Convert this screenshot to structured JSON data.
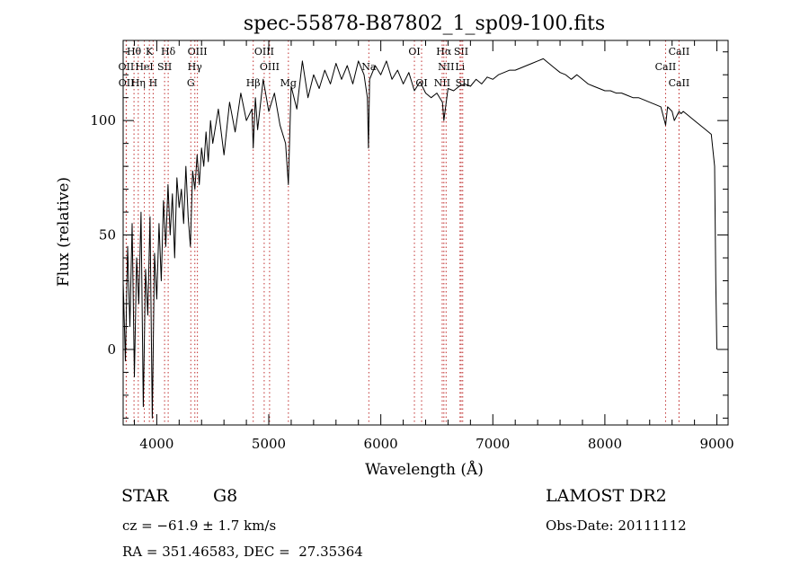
{
  "chart_data": {
    "type": "line",
    "title": "spec-55878-B87802_1_sp09-100.fits",
    "xlabel": "Wavelength (Å)",
    "ylabel": "Flux (relative)",
    "xlim": [
      3700,
      9100
    ],
    "ylim": [
      -33,
      135
    ],
    "x_ticks": [
      4000,
      5000,
      6000,
      7000,
      8000,
      9000
    ],
    "y_ticks": [
      0,
      50,
      100
    ],
    "grid": false,
    "series": [
      {
        "x": [
          3700,
          3720,
          3740,
          3760,
          3780,
          3800,
          3820,
          3840,
          3860,
          3880,
          3900,
          3920,
          3940,
          3960,
          3980,
          4000,
          4020,
          4040,
          4060,
          4080,
          4100,
          4120,
          4140,
          4160,
          4180,
          4200,
          4220,
          4240,
          4260,
          4280,
          4300,
          4320,
          4340,
          4360,
          4380,
          4400,
          4420,
          4440,
          4460,
          4480,
          4500,
          4550,
          4600,
          4650,
          4700,
          4750,
          4800,
          4850,
          4861,
          4880,
          4900,
          4950,
          5000,
          5050,
          5100,
          5150,
          5175,
          5200,
          5250,
          5300,
          5350,
          5400,
          5450,
          5500,
          5550,
          5600,
          5650,
          5700,
          5750,
          5800,
          5850,
          5880,
          5890,
          5900,
          5950,
          6000,
          6050,
          6100,
          6150,
          6200,
          6250,
          6300,
          6350,
          6400,
          6450,
          6500,
          6550,
          6563,
          6600,
          6650,
          6700,
          6750,
          6800,
          6850,
          6900,
          6950,
          7000,
          7050,
          7100,
          7150,
          7200,
          7250,
          7300,
          7350,
          7400,
          7450,
          7500,
          7550,
          7600,
          7650,
          7700,
          7750,
          7800,
          7850,
          7900,
          7950,
          8000,
          8050,
          8100,
          8150,
          8200,
          8250,
          8300,
          8350,
          8400,
          8450,
          8500,
          8542,
          8560,
          8600,
          8620,
          8662,
          8680,
          8700,
          8750,
          8800,
          8850,
          8900,
          8950,
          8980,
          8990,
          9000
        ],
        "y": [
          30,
          -5,
          45,
          10,
          55,
          -12,
          40,
          20,
          60,
          -25,
          35,
          15,
          58,
          -30,
          42,
          22,
          55,
          30,
          65,
          45,
          72,
          50,
          68,
          40,
          75,
          62,
          70,
          55,
          80,
          58,
          45,
          78,
          70,
          85,
          72,
          88,
          80,
          95,
          82,
          100,
          90,
          105,
          85,
          108,
          95,
          112,
          100,
          105,
          88,
          110,
          96,
          118,
          104,
          112,
          98,
          90,
          72,
          115,
          105,
          126,
          110,
          120,
          114,
          122,
          116,
          125,
          118,
          124,
          116,
          126,
          120,
          110,
          88,
          118,
          124,
          120,
          126,
          118,
          122,
          116,
          121,
          113,
          117,
          112,
          110,
          112,
          108,
          100,
          114,
          113,
          115,
          116,
          115,
          118,
          116,
          119,
          118,
          120,
          121,
          122,
          122,
          123,
          124,
          125,
          126,
          127,
          125,
          123,
          121,
          120,
          118,
          120,
          118,
          116,
          115,
          114,
          113,
          113,
          112,
          112,
          111,
          110,
          110,
          109,
          108,
          107,
          106,
          98,
          106,
          104,
          100,
          104,
          103,
          104,
          102,
          100,
          98,
          96,
          94,
          80,
          30,
          0
        ]
      }
    ],
    "line_markers": [
      {
        "label": "Hθ",
        "x": 3797,
        "row": 0
      },
      {
        "label": "K",
        "x": 3934,
        "row": 0
      },
      {
        "label": "Hδ",
        "x": 4102,
        "row": 0
      },
      {
        "label": "OIII",
        "x": 4363,
        "row": 0
      },
      {
        "label": "OIII",
        "x": 4959,
        "row": 0
      },
      {
        "label": "OI",
        "x": 6300,
        "row": 0
      },
      {
        "label": "Hα",
        "x": 6563,
        "row": 0
      },
      {
        "label": "SII",
        "x": 6717,
        "row": 0
      },
      {
        "label": "CaII",
        "x": 8662,
        "row": 0
      },
      {
        "label": "OII",
        "x": 3727,
        "row": 1
      },
      {
        "label": "HeI",
        "x": 3889,
        "row": 1
      },
      {
        "label": "SII",
        "x": 4070,
        "row": 1
      },
      {
        "label": "Hγ",
        "x": 4340,
        "row": 1
      },
      {
        "label": "OIII",
        "x": 5007,
        "row": 1
      },
      {
        "label": "NII",
        "x": 6583,
        "row": 1
      },
      {
        "label": "Li",
        "x": 6707,
        "row": 1
      },
      {
        "label": "CaII",
        "x": 8542,
        "row": 1
      },
      {
        "label": "OII",
        "x": 3729,
        "row": 2
      },
      {
        "label": "Hη",
        "x": 3835,
        "row": 2
      },
      {
        "label": "H",
        "x": 3968,
        "row": 2
      },
      {
        "label": "G",
        "x": 4304,
        "row": 2
      },
      {
        "label": "Hβ",
        "x": 4861,
        "row": 2
      },
      {
        "label": "Mg",
        "x": 5175,
        "row": 2
      },
      {
        "label": "Na",
        "x": 5893,
        "row": 1
      },
      {
        "label": "OI",
        "x": 6364,
        "row": 2
      },
      {
        "label": "NII",
        "x": 6548,
        "row": 2
      },
      {
        "label": "SII",
        "x": 6731,
        "row": 2
      },
      {
        "label": "CaII",
        "x": 8662,
        "row": 2
      }
    ]
  },
  "info": {
    "class_label": "STAR",
    "subclass": "G8",
    "survey": "LAMOST DR2",
    "cz": "cz = −61.9 ± 1.7 km/s",
    "obs_date": "Obs-Date: 20111112",
    "coords": "RA = 351.46583, DEC =  27.35364"
  }
}
